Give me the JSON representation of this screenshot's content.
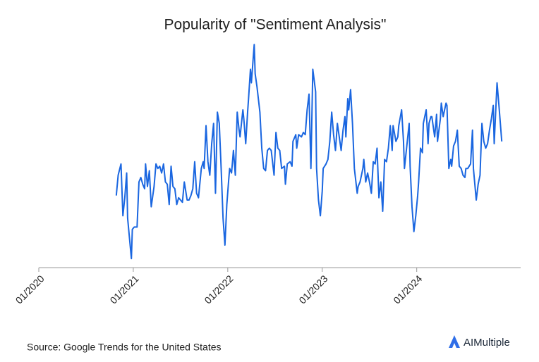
{
  "chart_data": {
    "type": "line",
    "title": "Popularity of \"Sentiment Analysis\"",
    "source": "Source: Google Trends for the United States",
    "brand": "AIMultiple",
    "color": "#1a66e0",
    "xlim": [
      2020,
      2025.1
    ],
    "ylim": [
      0,
      100
    ],
    "xticks": [
      {
        "value": 2020,
        "label": "01/2020"
      },
      {
        "value": 2021,
        "label": "01/2021"
      },
      {
        "value": 2022,
        "label": "01/2022"
      },
      {
        "value": 2023,
        "label": "01/2023"
      },
      {
        "value": 2024,
        "label": "01/2024"
      }
    ],
    "x": [
      2020.82,
      2020.84,
      2020.87,
      2020.89,
      2020.91,
      2020.93,
      2020.94,
      2020.96,
      2020.98,
      2020.99,
      2021.01,
      2021.04,
      2021.06,
      2021.08,
      2021.1,
      2021.12,
      2021.13,
      2021.15,
      2021.17,
      2021.19,
      2021.22,
      2021.24,
      2021.26,
      2021.28,
      2021.3,
      2021.32,
      2021.34,
      2021.36,
      2021.38,
      2021.4,
      2021.42,
      2021.44,
      2021.46,
      2021.48,
      2021.5,
      2021.52,
      2021.54,
      2021.57,
      2021.59,
      2021.61,
      2021.63,
      2021.65,
      2021.67,
      2021.69,
      2021.72,
      2021.74,
      2021.75,
      2021.77,
      2021.79,
      2021.81,
      2021.83,
      2021.85,
      2021.87,
      2021.89,
      2021.91,
      2021.93,
      2021.95,
      2021.97,
      2021.99,
      2022.01,
      2022.02,
      2022.04,
      2022.06,
      2022.08,
      2022.1,
      2022.12,
      2022.13,
      2022.16,
      2022.17,
      2022.19,
      2022.21,
      2022.22,
      2022.24,
      2022.25,
      2022.28,
      2022.29,
      2022.31,
      2022.34,
      2022.36,
      2022.38,
      2022.4,
      2022.42,
      2022.44,
      2022.46,
      2022.49,
      2022.51,
      2022.53,
      2022.55,
      2022.57,
      2022.6,
      2022.61,
      2022.63,
      2022.66,
      2022.68,
      2022.69,
      2022.72,
      2022.73,
      2022.75,
      2022.78,
      2022.8,
      2022.82,
      2022.84,
      2022.86,
      2022.88,
      2022.9,
      2022.93,
      2022.94,
      2022.96,
      2022.98,
      2023.0,
      2023.01,
      2023.04,
      2023.06,
      2023.08,
      2023.1,
      2023.12,
      2023.14,
      2023.16,
      2023.18,
      2023.2,
      2023.22,
      2023.24,
      2023.25,
      2023.27,
      2023.28,
      2023.3,
      2023.32,
      2023.34,
      2023.37,
      2023.38,
      2023.4,
      2023.43,
      2023.44,
      2023.46,
      2023.48,
      2023.5,
      2023.52,
      2023.54,
      2023.56,
      2023.58,
      2023.6,
      2023.62,
      2023.64,
      2023.66,
      2023.68,
      2023.7,
      2023.72,
      2023.74,
      2023.75,
      2023.78,
      2023.8,
      2023.81,
      2023.84,
      2023.86,
      2023.87,
      2023.9,
      2023.92,
      2023.93,
      2023.95,
      2023.97,
      2023.99,
      2024.01,
      2024.02,
      2024.04,
      2024.06,
      2024.07,
      2024.1,
      2024.12,
      2024.13,
      2024.15,
      2024.16,
      2024.19,
      2024.21,
      2024.22,
      2024.25,
      2024.26,
      2024.28,
      2024.31,
      2024.32,
      2024.34,
      2024.36,
      2024.37,
      2024.39,
      2024.41,
      2024.43,
      2024.45,
      2024.47,
      2024.49,
      2024.51,
      2024.52,
      2024.54,
      2024.57,
      2024.59,
      2024.6,
      2024.63,
      2024.65,
      2024.67,
      2024.69,
      2024.71,
      2024.73,
      2024.75,
      2024.77,
      2024.79,
      2024.81,
      2024.82,
      2024.85,
      2024.87,
      2024.9
    ],
    "values": [
      32,
      41,
      46,
      23,
      31,
      42,
      22,
      13,
      4,
      17,
      18,
      18,
      38,
      40,
      37,
      35,
      46,
      36,
      43,
      27,
      36,
      46,
      44,
      45,
      42,
      46,
      38,
      37,
      28,
      45,
      36,
      35,
      28,
      31,
      30,
      29,
      38,
      30,
      30,
      32,
      35,
      47,
      33,
      31,
      44,
      47,
      44,
      63,
      47,
      41,
      55,
      64,
      33,
      69,
      64,
      44,
      22,
      10,
      28,
      39,
      44,
      42,
      52,
      41,
      69,
      61,
      58,
      70,
      66,
      55,
      69,
      75,
      88,
      82,
      99,
      86,
      80,
      69,
      53,
      44,
      43,
      52,
      53,
      52,
      41,
      60,
      53,
      52,
      44,
      45,
      37,
      46,
      47,
      45,
      56,
      59,
      53,
      59,
      58,
      60,
      59,
      70,
      77,
      44,
      88,
      78,
      44,
      30,
      23,
      34,
      44,
      46,
      48,
      56,
      69,
      59,
      52,
      64,
      58,
      52,
      61,
      67,
      58,
      75,
      70,
      79,
      64,
      44,
      33,
      36,
      38,
      44,
      48,
      38,
      42,
      38,
      33,
      47,
      46,
      53,
      31,
      38,
      25,
      48,
      47,
      53,
      63,
      52,
      63,
      56,
      58,
      63,
      70,
      56,
      44,
      56,
      64,
      45,
      27,
      16,
      23,
      32,
      38,
      53,
      51,
      64,
      70,
      55,
      64,
      67,
      67,
      58,
      68,
      56,
      66,
      73,
      67,
      73,
      72,
      44,
      48,
      45,
      54,
      56,
      61,
      45,
      44,
      41,
      40,
      44,
      44,
      46,
      61,
      44,
      30,
      37,
      41,
      64,
      56,
      53,
      55,
      61,
      66,
      72,
      55,
      82,
      72,
      56
    ]
  }
}
